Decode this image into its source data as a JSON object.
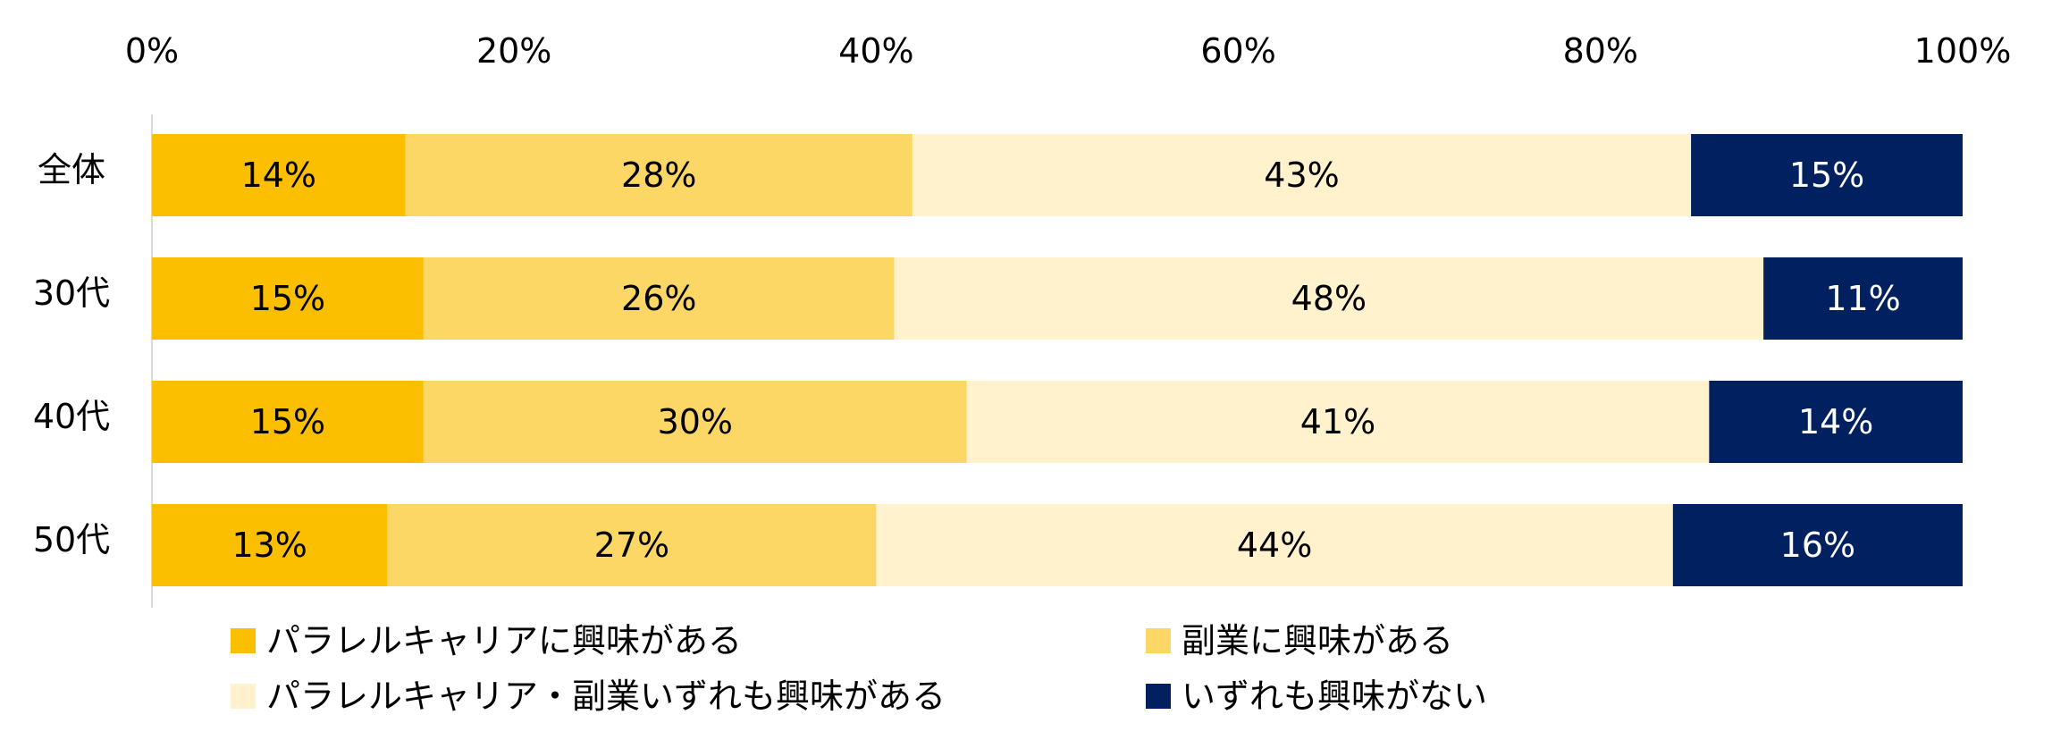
{
  "chart_data": {
    "type": "bar",
    "orientation": "horizontal",
    "stacked": "percent",
    "categories": [
      "全体",
      "30代",
      "40代",
      "50代"
    ],
    "series": [
      {
        "name": "パラレルキャリアに興味がある",
        "values": [
          14,
          15,
          15,
          13
        ],
        "color": "#FBBF00",
        "label_color": "#000000"
      },
      {
        "name": "副業に興味がある",
        "values": [
          28,
          26,
          30,
          27
        ],
        "color": "#FDD766",
        "label_color": "#000000"
      },
      {
        "name": "パラレルキャリア・副業いずれも興味がある",
        "values": [
          43,
          48,
          41,
          44
        ],
        "color": "#FFF2CC",
        "label_color": "#000000"
      },
      {
        "name": "いずれも興味がない",
        "values": [
          15,
          11,
          14,
          16
        ],
        "color": "#002060",
        "label_color": "#FFFFFF"
      }
    ],
    "data_labels": [
      [
        "14%",
        "28%",
        "43%",
        "15%"
      ],
      [
        "15%",
        "26%",
        "48%",
        "11%"
      ],
      [
        "15%",
        "30%",
        "41%",
        "14%"
      ],
      [
        "13%",
        "27%",
        "44%",
        "16%"
      ]
    ],
    "x_ticks": [
      "0%",
      "20%",
      "40%",
      "60%",
      "80%",
      "100%"
    ],
    "x_tick_values": [
      0,
      20,
      40,
      60,
      80,
      100
    ],
    "xlim": [
      0,
      100
    ],
    "x_axis_position": "top",
    "legend_position": "bottom",
    "grid": false,
    "title": "",
    "xlabel": "",
    "ylabel": ""
  }
}
